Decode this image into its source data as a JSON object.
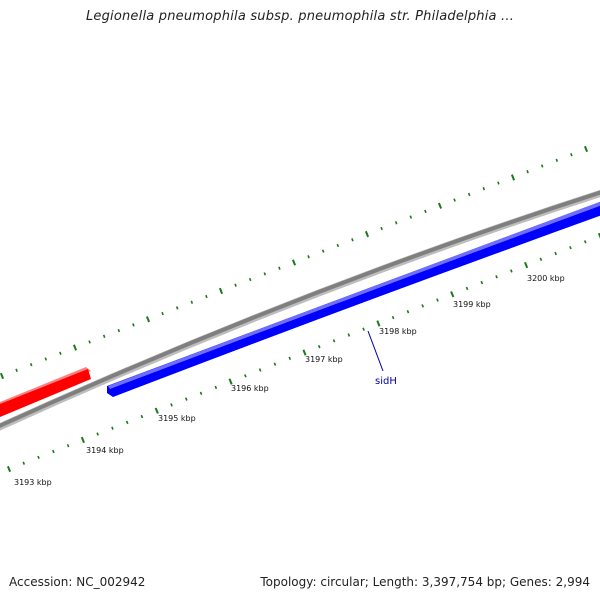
{
  "title": "Legionella pneumophila subsp. pneumophila str. Philadelphia ...",
  "footer": {
    "accession": "Accession: NC_002942",
    "summary": "Topology: circular; Length: 3,397,754 bp; Genes: 2,994"
  },
  "colors": {
    "backbone": "#8a8a8a",
    "forward_feature": "#ff0000",
    "reverse_feature": "#0000ff",
    "tick": "#1a7a1a",
    "label": "#111111",
    "gene_label": "#0000aa"
  },
  "features": [
    {
      "name": "",
      "strand": "forward",
      "color": "#ff0000"
    },
    {
      "name": "sidH",
      "strand": "reverse",
      "color": "#0000ff"
    }
  ],
  "ruler": {
    "labels": [
      "3193 kbp",
      "3194 kbp",
      "3195 kbp",
      "3196 kbp",
      "3197 kbp",
      "3198 kbp",
      "3199 kbp",
      "3200 kbp"
    ]
  }
}
